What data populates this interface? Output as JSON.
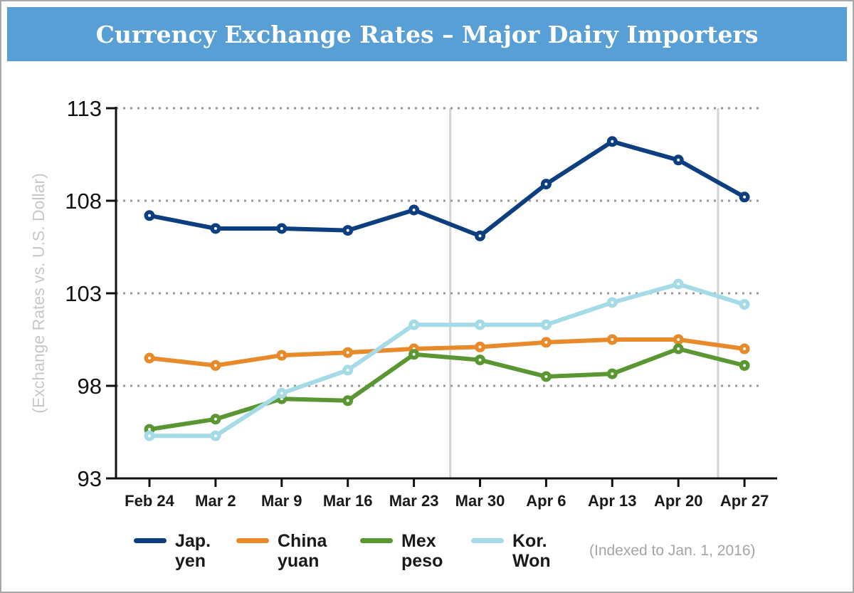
{
  "chart_data": {
    "type": "line",
    "title": "Currency Exchange Rates – Major Dairy Importers",
    "ylabel": "(Exchange Rates vs. U.S. Dollar)",
    "xlabel": "",
    "note": "(Indexed to Jan. 1, 2016)",
    "ylim": [
      93,
      113
    ],
    "yticks": [
      "93",
      "98",
      "103",
      "108",
      "113"
    ],
    "grid": "dotted horizontal",
    "legend_placement": "bottom",
    "categories": [
      "Feb 24",
      "Mar 2",
      "Mar 9",
      "Mar 16",
      "Mar 23",
      "Mar 30",
      "Apr 6",
      "Apr 13",
      "Apr 20",
      "Apr 27"
    ],
    "series": [
      {
        "name": "Jap. yen",
        "color": "#0d3f80",
        "values": [
          107.2,
          106.5,
          106.5,
          106.4,
          107.5,
          106.1,
          108.9,
          111.2,
          110.2,
          108.2
        ]
      },
      {
        "name": "China yuan",
        "color": "#e8892a",
        "values": [
          99.5,
          99.1,
          99.65,
          99.8,
          100.0,
          100.1,
          100.35,
          100.5,
          100.5,
          100.0
        ]
      },
      {
        "name": "Mex peso",
        "color": "#5a9632",
        "values": [
          95.65,
          96.2,
          97.3,
          97.2,
          99.7,
          99.4,
          98.5,
          98.65,
          100.0,
          99.1
        ]
      },
      {
        "name": "Kor. Won",
        "color": "#a5dbe6",
        "values": [
          95.3,
          95.3,
          97.6,
          98.85,
          101.3,
          101.3,
          101.3,
          102.5,
          103.5,
          102.4
        ]
      }
    ],
    "legend_labels": [
      "Jap.\nyen",
      "China\nyuan",
      "Mex\npeso",
      "Kor.\nWon"
    ]
  }
}
